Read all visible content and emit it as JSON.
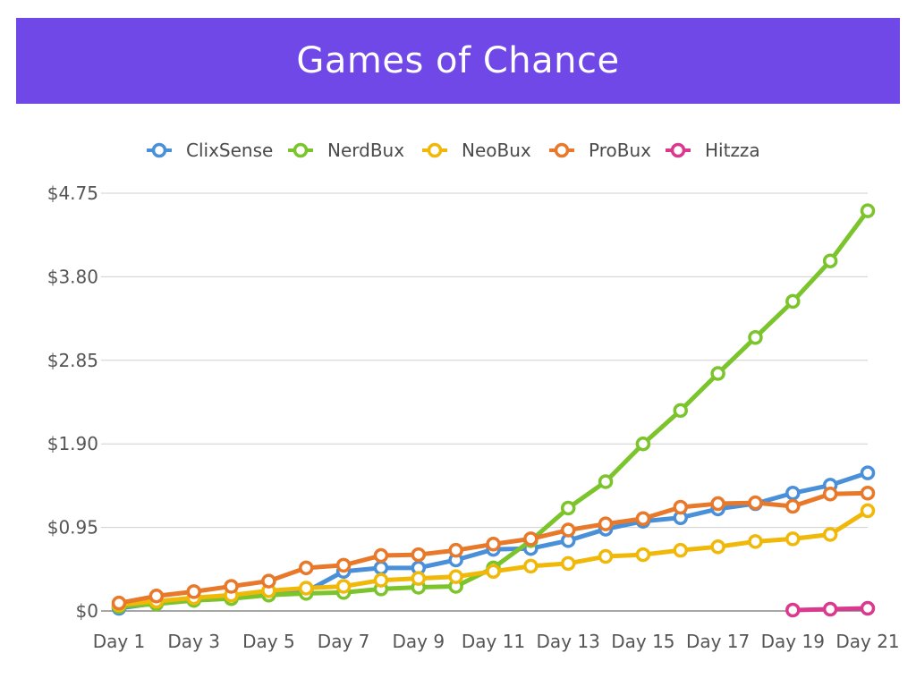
{
  "title": "Games of Chance",
  "colors": {
    "ClixSense": "#4a90d9",
    "NerdBux": "#7cc42c",
    "NeoBux": "#f0b90a",
    "ProBux": "#e8782a",
    "Hitzza": "#d93a8e"
  },
  "chart_data": {
    "type": "line",
    "title": "Games of Chance",
    "xlabel": "",
    "ylabel": "",
    "ylim": [
      0,
      4.75
    ],
    "yticks": [
      0,
      0.95,
      1.9,
      2.85,
      3.8,
      4.75
    ],
    "ytick_labels": [
      "$0",
      "$0.95",
      "$1.90",
      "$2.85",
      "$3.80",
      "$4.75"
    ],
    "x": [
      "Day 1",
      "Day 2",
      "Day 3",
      "Day 4",
      "Day 5",
      "Day 6",
      "Day 7",
      "Day 8",
      "Day 9",
      "Day 10",
      "Day 11",
      "Day 12",
      "Day 13",
      "Day 14",
      "Day 15",
      "Day 16",
      "Day 17",
      "Day 18",
      "Day 19",
      "Day 20",
      "Day 21"
    ],
    "xtick_labels": [
      "Day 1",
      "Day 3",
      "Day 5",
      "Day 7",
      "Day 9",
      "Day 11",
      "Day 13",
      "Day 15",
      "Day 17",
      "Day 19",
      "Day 21"
    ],
    "grid": true,
    "legend": "top",
    "series": [
      {
        "name": "ClixSense",
        "values": [
          0.03,
          0.09,
          0.13,
          0.15,
          0.19,
          0.22,
          0.45,
          0.49,
          0.49,
          0.58,
          0.7,
          0.71,
          0.8,
          0.93,
          1.02,
          1.06,
          1.16,
          1.22,
          1.34,
          1.43,
          1.57
        ]
      },
      {
        "name": "NerdBux",
        "values": [
          0.05,
          0.08,
          0.12,
          0.14,
          0.18,
          0.2,
          0.21,
          0.25,
          0.27,
          0.28,
          0.49,
          0.8,
          1.17,
          1.47,
          1.9,
          2.28,
          2.7,
          3.11,
          3.52,
          3.98,
          4.55
        ]
      },
      {
        "name": "NeoBux",
        "values": [
          0.07,
          0.11,
          0.15,
          0.18,
          0.23,
          0.26,
          0.28,
          0.35,
          0.37,
          0.39,
          0.45,
          0.51,
          0.54,
          0.62,
          0.64,
          0.69,
          0.73,
          0.79,
          0.82,
          0.87,
          1.14
        ]
      },
      {
        "name": "ProBux",
        "values": [
          0.09,
          0.17,
          0.22,
          0.28,
          0.34,
          0.49,
          0.52,
          0.63,
          0.64,
          0.69,
          0.76,
          0.82,
          0.92,
          0.99,
          1.05,
          1.18,
          1.22,
          1.23,
          1.19,
          1.33,
          1.34
        ]
      },
      {
        "name": "Hitzza",
        "values": [
          null,
          null,
          null,
          null,
          null,
          null,
          null,
          null,
          null,
          null,
          null,
          null,
          null,
          null,
          null,
          null,
          null,
          null,
          0.01,
          0.02,
          0.03
        ]
      }
    ]
  }
}
